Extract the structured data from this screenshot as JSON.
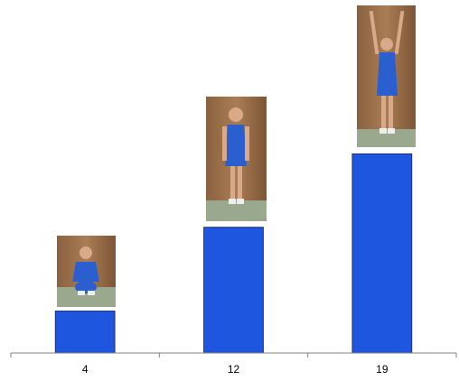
{
  "chart_data": {
    "type": "bar",
    "categories": [
      "4",
      "12",
      "19"
    ],
    "values": [
      4,
      12,
      19
    ],
    "color": "#1f56e0",
    "ylim": [
      0,
      33
    ]
  }
}
